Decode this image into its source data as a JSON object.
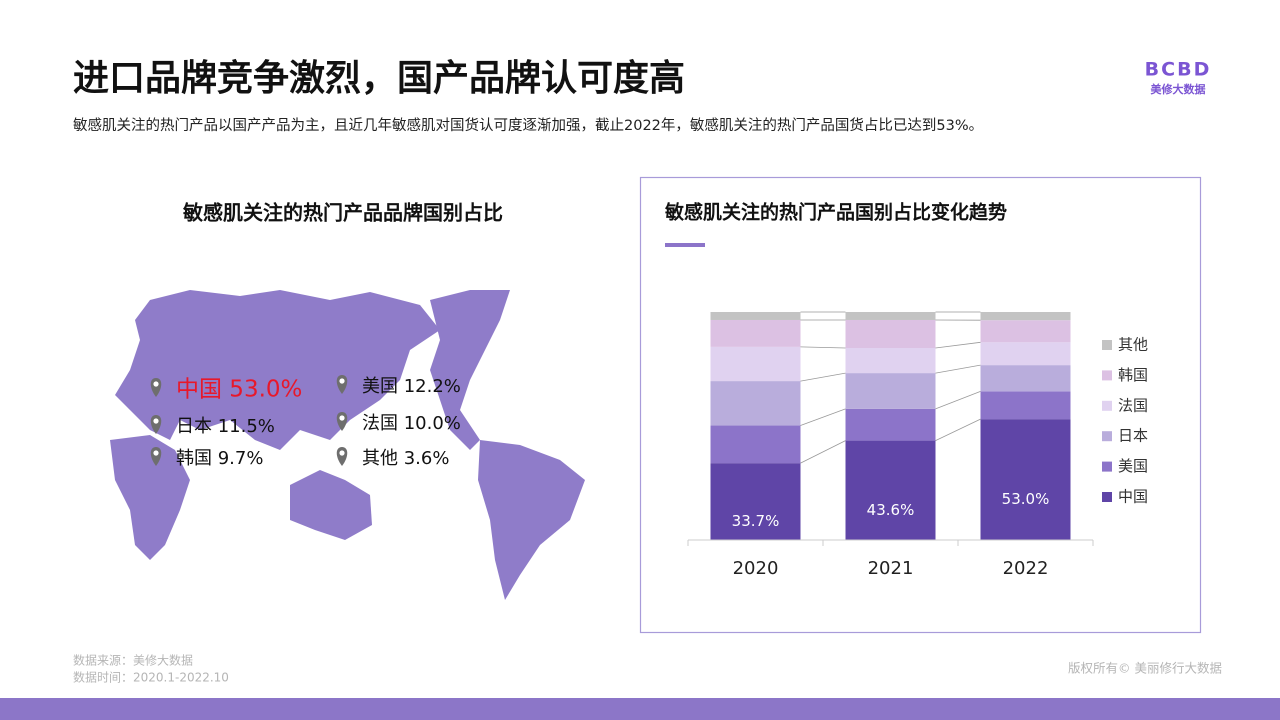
{
  "header": {
    "title": "进口品牌竞争激烈，国产品牌认可度高",
    "subtitle": "敏感肌关注的热门产品以国产产品为主，且近几年敏感肌对国货认可度逐渐加强，截止2022年，敏感肌关注的热门产品国货占比已达到53%。",
    "logo": "BCBD",
    "logo_sub": "美修大数据"
  },
  "map_panel": {
    "title": "敏感肌关注的热门产品品牌国别占比",
    "labels": [
      "中国 53.0%",
      "日本 11.5%",
      "韩国 9.7%",
      "美国 12.2%",
      "法国 10.0%",
      "其他 3.6%"
    ]
  },
  "chart_data": {
    "type": "bar",
    "stacked": true,
    "title": "敏感肌关注的热门产品国别占比变化趋势",
    "categories": [
      "2020",
      "2021",
      "2022"
    ],
    "ylim": [
      0,
      100
    ],
    "legend": "right",
    "series": [
      {
        "name": "中国",
        "color": "#5f45a7",
        "values": [
          33.7,
          43.6,
          53.0
        ],
        "value_labels": [
          "33.7%",
          "43.6%",
          "53.0%"
        ]
      },
      {
        "name": "美国",
        "color": "#8c74c9",
        "values": [
          16.5,
          13.9,
          12.2
        ]
      },
      {
        "name": "日本",
        "color": "#b9addc",
        "values": [
          19.5,
          15.7,
          11.5
        ]
      },
      {
        "name": "法国",
        "color": "#e0d2f0",
        "values": [
          15.0,
          11.0,
          10.0
        ]
      },
      {
        "name": "韩国",
        "color": "#dcc1e3",
        "values": [
          11.8,
          12.3,
          9.7
        ]
      },
      {
        "name": "其他",
        "color": "#c3c3c3",
        "values": [
          3.5,
          3.5,
          3.6
        ]
      }
    ]
  },
  "footer": {
    "source": "数据来源：美修大数据",
    "time": "数据时间：2020.1-2022.10",
    "copyright": "版权所有© 美丽修行大数据"
  }
}
